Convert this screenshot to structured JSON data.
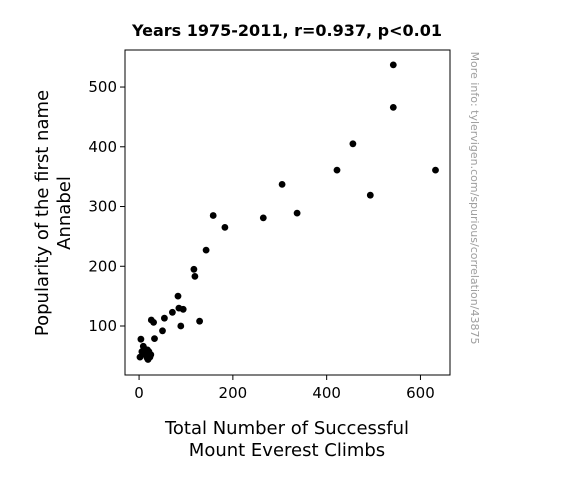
{
  "chart_data": {
    "type": "scatter",
    "title": "Years 1975-2011, r=0.937, p<0.01",
    "xlabel_lines": [
      "Total Number of Successful",
      "Mount Everest Climbs"
    ],
    "ylabel_lines": [
      "Popularity of the first name",
      "Annabel"
    ],
    "watermark": "More info: tylervigen.com/spurious/correlation/43875",
    "xlim": [
      -30,
      663
    ],
    "ylim": [
      18,
      562
    ],
    "x_ticks": [
      0,
      200,
      400,
      600
    ],
    "y_ticks": [
      100,
      200,
      300,
      400,
      500
    ],
    "grid": false,
    "point_color": "#000000",
    "points": [
      [
        2,
        48
      ],
      [
        4,
        78
      ],
      [
        6,
        57
      ],
      [
        9,
        66
      ],
      [
        11,
        62
      ],
      [
        14,
        52
      ],
      [
        17,
        47
      ],
      [
        19,
        44
      ],
      [
        21,
        57
      ],
      [
        23,
        48
      ],
      [
        25,
        52
      ],
      [
        26,
        110
      ],
      [
        31,
        106
      ],
      [
        33,
        79
      ],
      [
        50,
        92
      ],
      [
        54,
        113
      ],
      [
        71,
        123
      ],
      [
        83,
        150
      ],
      [
        85,
        130
      ],
      [
        89,
        100
      ],
      [
        94,
        128
      ],
      [
        117,
        195
      ],
      [
        119,
        183
      ],
      [
        129,
        108
      ],
      [
        143,
        227
      ],
      [
        158,
        285
      ],
      [
        183,
        265
      ],
      [
        265,
        281
      ],
      [
        305,
        337
      ],
      [
        337,
        289
      ],
      [
        422,
        361
      ],
      [
        456,
        405
      ],
      [
        493,
        319
      ],
      [
        542,
        537
      ],
      [
        542,
        466
      ],
      [
        632,
        361
      ],
      [
        18,
        60
      ]
    ]
  }
}
